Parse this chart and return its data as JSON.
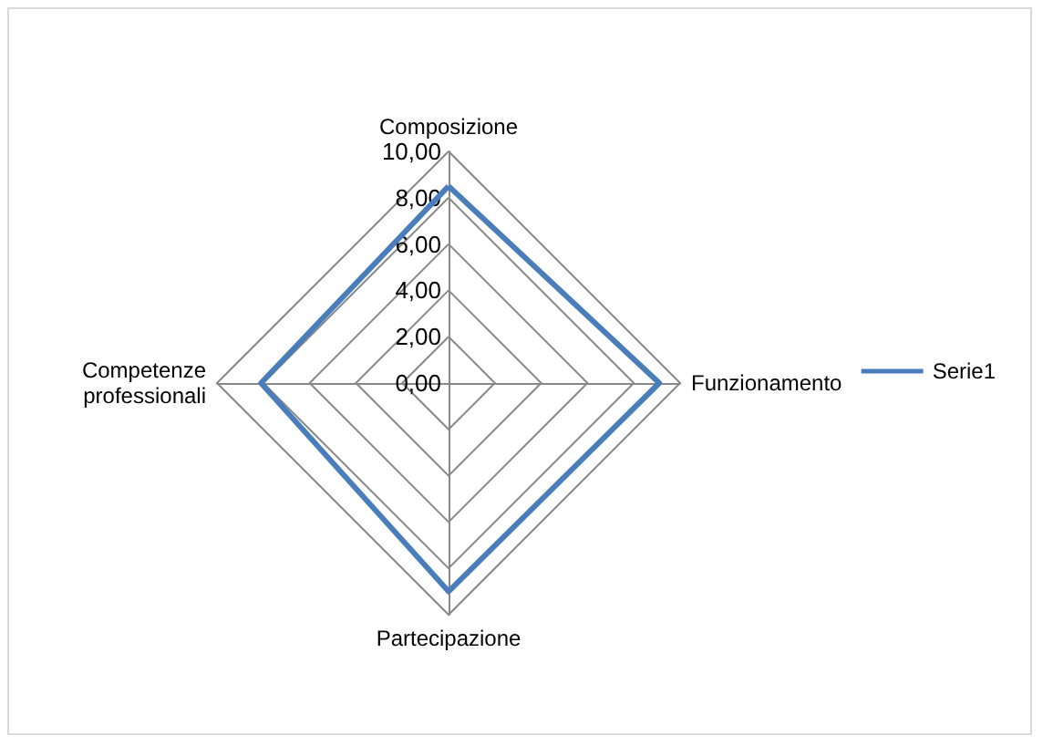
{
  "chart_data": {
    "type": "radar",
    "categories": [
      "Composizione",
      "Funzionamento",
      "Partecipazione",
      "Competenze\nprofessionali"
    ],
    "series": [
      {
        "name": "Serie1",
        "color": "#4a7ebb",
        "values": [
          8.5,
          9.1,
          9.0,
          8.1
        ]
      }
    ],
    "ylim": [
      0,
      10
    ],
    "yticks": [
      {
        "value": 0,
        "label": "0,00"
      },
      {
        "value": 2,
        "label": "2,00"
      },
      {
        "value": 4,
        "label": "4,00"
      },
      {
        "value": 6,
        "label": "6,00"
      },
      {
        "value": 8,
        "label": "8,00"
      },
      {
        "value": 10,
        "label": "10,00"
      }
    ],
    "legend": "right",
    "marker": "none",
    "line_style": "solid"
  }
}
